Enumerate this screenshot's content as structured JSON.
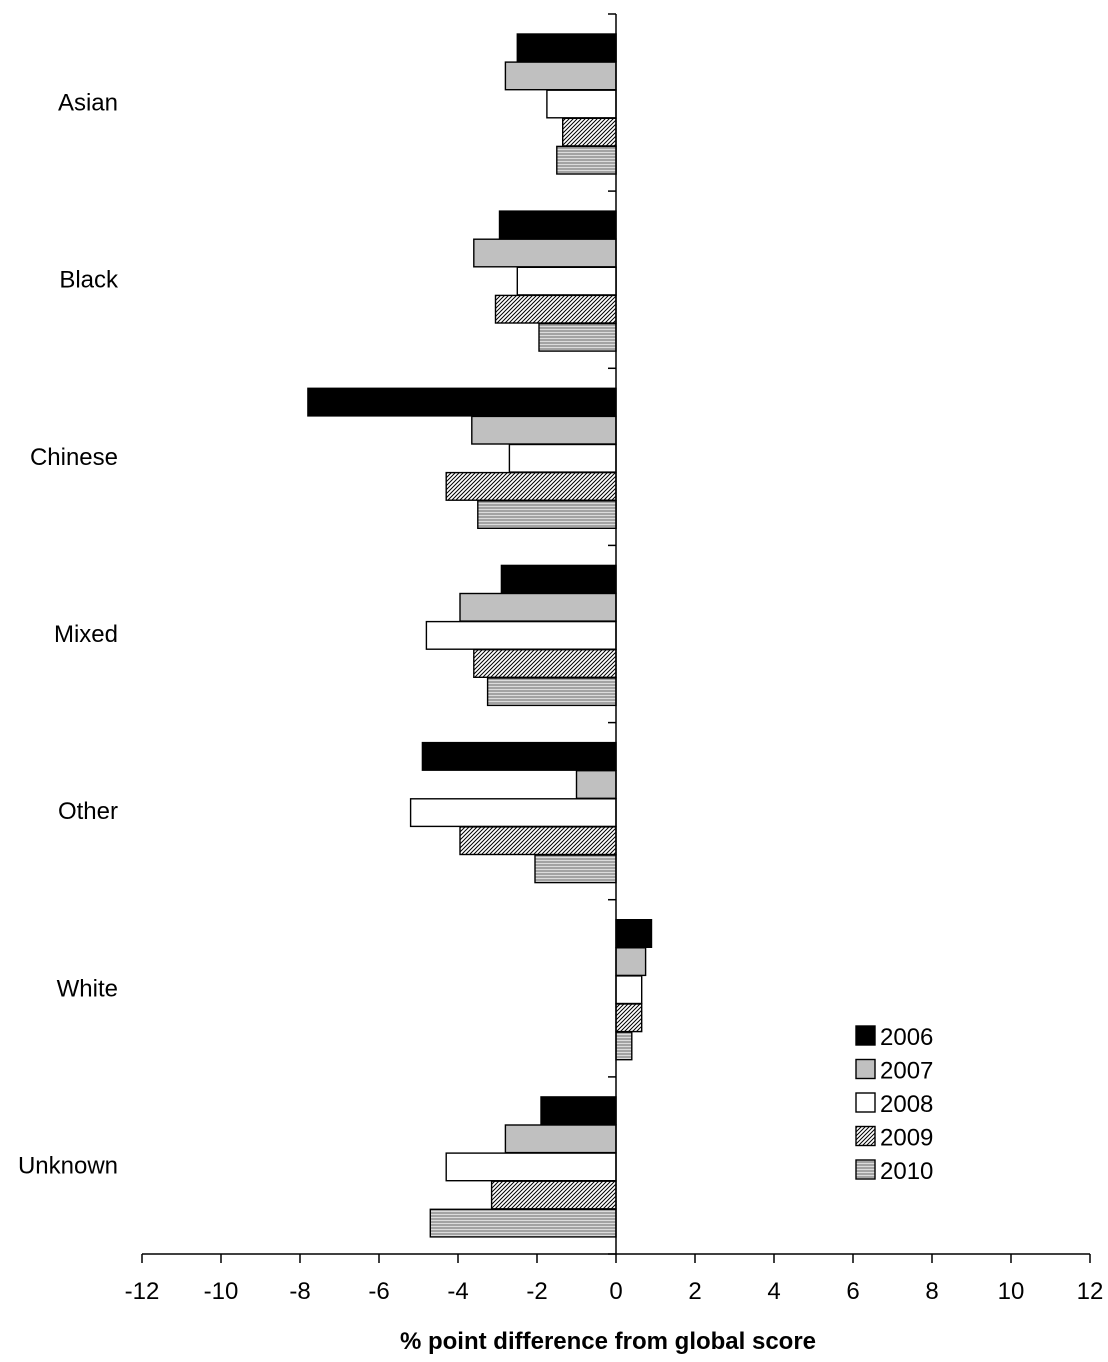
{
  "chart_data": {
    "type": "bar",
    "orientation": "horizontal",
    "title": "",
    "xlabel": "% point difference from global score",
    "ylabel": "",
    "xlim": [
      -12,
      12
    ],
    "xticks": [
      -12,
      -10,
      -8,
      -6,
      -4,
      -2,
      0,
      2,
      4,
      6,
      8,
      10,
      12
    ],
    "grid": false,
    "legend_position": "bottom-right",
    "categories": [
      "Asian",
      "Black",
      "Chinese",
      "Mixed",
      "Other",
      "White",
      "Unknown"
    ],
    "series": [
      {
        "name": "2006",
        "pattern": "solid-black",
        "values": [
          -2.5,
          -2.95,
          -7.8,
          -2.9,
          -4.9,
          0.9,
          -1.9
        ]
      },
      {
        "name": "2007",
        "pattern": "solid-gray",
        "values": [
          -2.8,
          -3.6,
          -3.65,
          -3.95,
          -1.0,
          0.75,
          -2.8
        ]
      },
      {
        "name": "2008",
        "pattern": "white",
        "values": [
          -1.75,
          -2.5,
          -2.7,
          -4.8,
          -5.2,
          0.65,
          -4.3
        ]
      },
      {
        "name": "2009",
        "pattern": "diagonal-hatch",
        "values": [
          -1.35,
          -3.05,
          -4.3,
          -3.6,
          -3.95,
          0.65,
          -3.15
        ]
      },
      {
        "name": "2010",
        "pattern": "horizontal-hatch",
        "values": [
          -1.5,
          -1.95,
          -3.5,
          -3.25,
          -2.05,
          0.4,
          -4.7
        ]
      }
    ],
    "colors": {
      "series_2006": "#000000",
      "series_2007": "#c0c0c0",
      "series_2008": "#ffffff",
      "bar_stroke": "#000000"
    }
  }
}
